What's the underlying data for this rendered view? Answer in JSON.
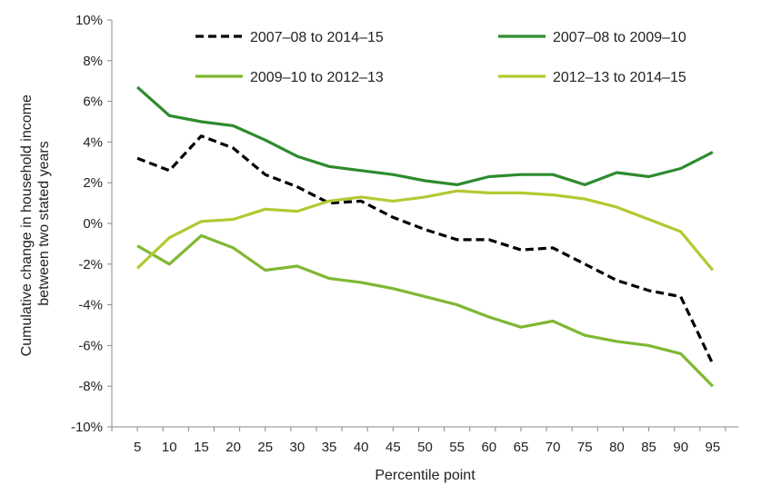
{
  "chart_data": {
    "type": "line",
    "xlabel": "Percentile point",
    "ylabel_lines": [
      "Cumulative change in household income",
      "between two stated years"
    ],
    "x_ticks": [
      5,
      10,
      15,
      20,
      25,
      30,
      35,
      40,
      45,
      50,
      55,
      60,
      65,
      70,
      75,
      80,
      85,
      90,
      95
    ],
    "xlim": [
      1,
      99
    ],
    "ylim": [
      -10,
      10
    ],
    "y_ticks": [
      -10,
      -8,
      -6,
      -4,
      -2,
      0,
      2,
      4,
      6,
      8,
      10
    ],
    "y_tick_labels": [
      "-10%",
      "-8%",
      "-6%",
      "-4%",
      "-2%",
      "0%",
      "2%",
      "4%",
      "6%",
      "8%",
      "10%"
    ],
    "grid": false,
    "legend_placement": "top",
    "x": [
      5,
      10,
      15,
      20,
      25,
      30,
      35,
      40,
      45,
      50,
      55,
      60,
      65,
      70,
      75,
      80,
      85,
      90,
      95
    ],
    "series": [
      {
        "name": "2007–08 to 2014–15",
        "color": "#000000",
        "dash": true,
        "values": [
          3.2,
          2.6,
          4.3,
          3.7,
          2.4,
          1.8,
          1.0,
          1.1,
          0.3,
          -0.3,
          -0.8,
          -0.8,
          -1.3,
          -1.2,
          -2.0,
          -2.8,
          -3.3,
          -3.6,
          -6.9
        ]
      },
      {
        "name": "2007–08 to 2009–10",
        "color": "#2e8b2e",
        "dash": false,
        "values": [
          6.7,
          5.3,
          5.0,
          4.8,
          4.1,
          3.3,
          2.8,
          2.6,
          2.4,
          2.1,
          1.9,
          2.3,
          2.4,
          2.4,
          1.9,
          2.5,
          2.3,
          2.7,
          3.5
        ]
      },
      {
        "name": "2009–10 to 2012–13",
        "color": "#7fb832",
        "dash": false,
        "values": [
          -1.1,
          -2.0,
          -0.6,
          -1.2,
          -2.3,
          -2.1,
          -2.7,
          -2.9,
          -3.2,
          -3.6,
          -4.0,
          -4.6,
          -5.1,
          -4.8,
          -5.5,
          -5.8,
          -6.0,
          -6.4,
          -8.0
        ]
      },
      {
        "name": "2012–13 to 2014–15",
        "color": "#b5c832",
        "dash": false,
        "values": [
          -2.2,
          -0.7,
          0.1,
          0.2,
          0.7,
          0.6,
          1.1,
          1.3,
          1.1,
          1.3,
          1.6,
          1.5,
          1.5,
          1.4,
          1.2,
          0.8,
          0.2,
          -0.4,
          -2.3
        ]
      }
    ]
  }
}
